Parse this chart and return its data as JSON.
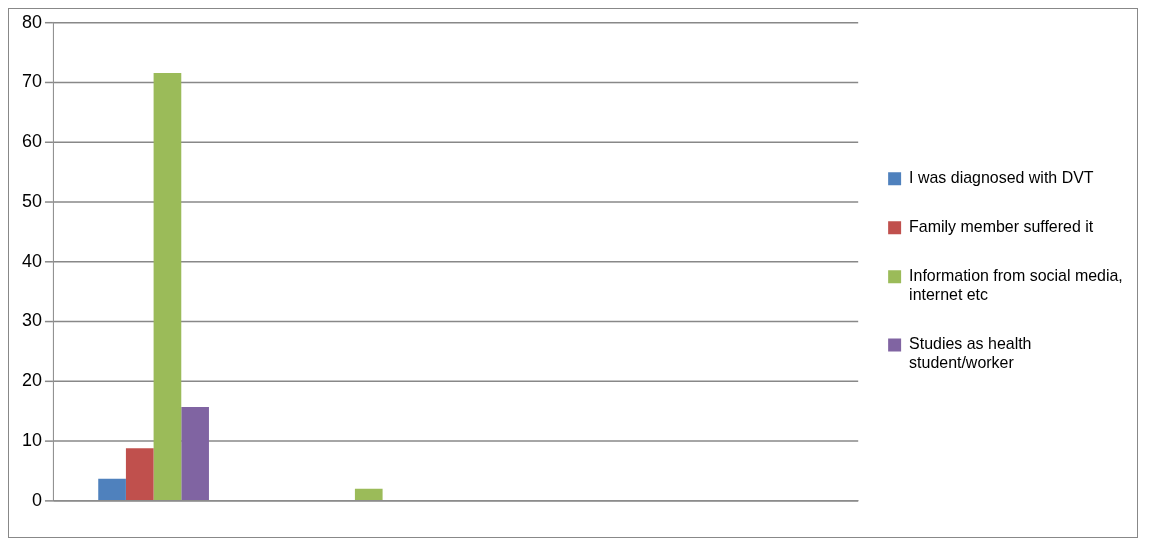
{
  "chart_data": {
    "type": "bar",
    "categories": [
      null,
      null,
      null,
      null
    ],
    "series": [
      {
        "name": "I was diagnosed with DVT",
        "color": "#4f81bd",
        "values": [
          3.7,
          0,
          0,
          0
        ]
      },
      {
        "name": "Family member suffered it",
        "color": "#c0504d",
        "values": [
          8.8,
          0,
          0,
          0
        ]
      },
      {
        "name": "Information from social media, internet etc",
        "color": "#9bbb59",
        "values": [
          71.6,
          2,
          0,
          0
        ]
      },
      {
        "name": "Studies as health student/worker",
        "color": "#8064a2",
        "values": [
          15.7,
          0,
          0,
          0
        ]
      }
    ],
    "ylim": [
      0,
      80
    ],
    "yticks": [
      0,
      10,
      20,
      30,
      40,
      50,
      60,
      70,
      80
    ],
    "grid": "y",
    "legend": "right"
  }
}
